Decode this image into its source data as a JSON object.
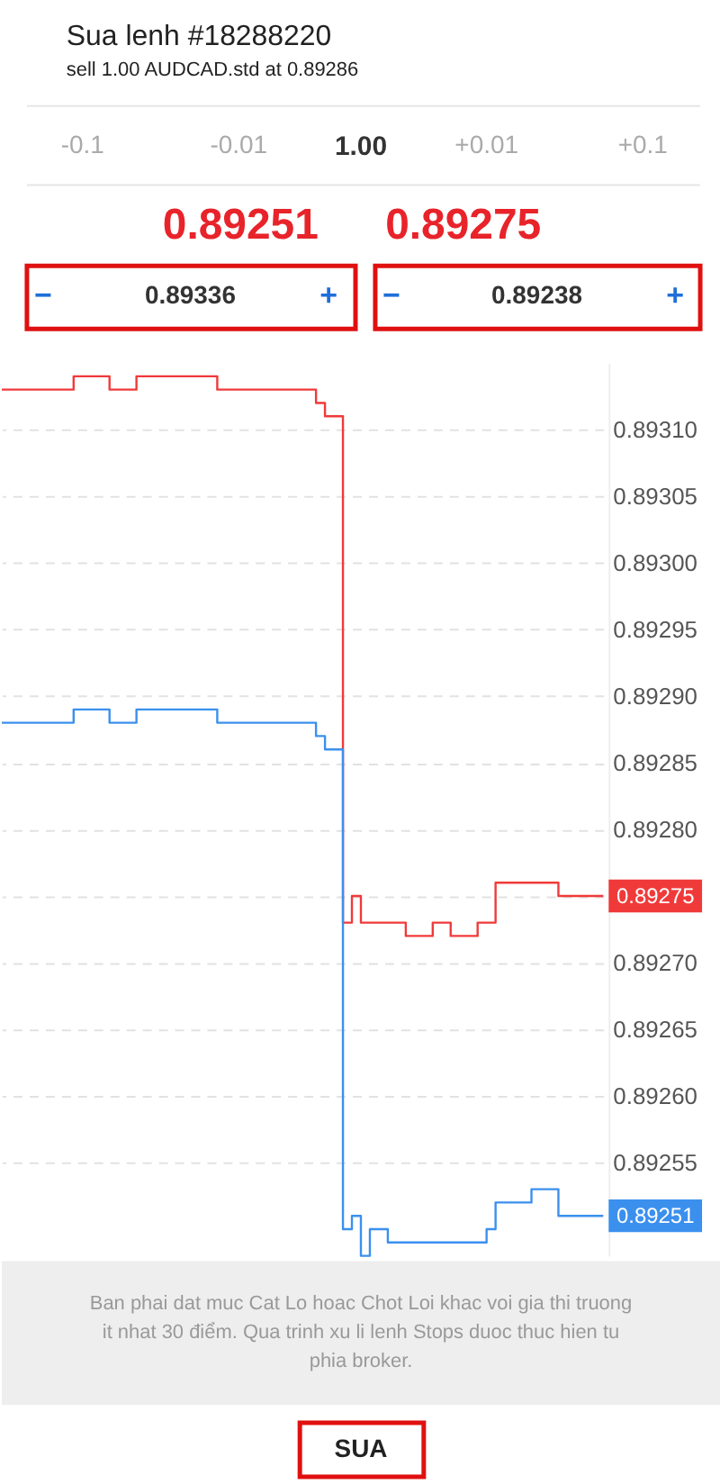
{
  "chart_data": {
    "type": "step",
    "title": "Sua lenh #18288220",
    "subtitle": "sell 1.00 AUDCAD.std at 0.89286",
    "categories": [
      null,
      null,
      null,
      null,
      null,
      null,
      null,
      null,
      null,
      null,
      null,
      null,
      null,
      null,
      null,
      null,
      null,
      null,
      null,
      null,
      null,
      null,
      null,
      null,
      null,
      null,
      null,
      null,
      null,
      null,
      null,
      null,
      null,
      null,
      null,
      null,
      null,
      null,
      null,
      null,
      null,
      null,
      null,
      null,
      null,
      null,
      null,
      null,
      null,
      null,
      null,
      null,
      null,
      null,
      null,
      null,
      null,
      null,
      null,
      null,
      null,
      null,
      null,
      null,
      null,
      null,
      null,
      null
    ],
    "series": [
      {
        "color": "#f03a3a",
        "values": [
          0.89313,
          0.89313,
          0.89313,
          0.89313,
          0.89313,
          0.89313,
          0.89313,
          0.89313,
          0.89314,
          0.89314,
          0.89314,
          0.89314,
          0.89313,
          0.89313,
          0.89313,
          0.89314,
          0.89314,
          0.89314,
          0.89314,
          0.89314,
          0.89314,
          0.89314,
          0.89314,
          0.89314,
          0.89313,
          0.89313,
          0.89313,
          0.89313,
          0.89313,
          0.89313,
          0.89313,
          0.89313,
          0.89313,
          0.89313,
          0.89313,
          0.89312,
          0.89311,
          0.89311,
          0.89273,
          0.89275,
          0.89273,
          0.89273,
          0.89273,
          0.89273,
          0.89273,
          0.89272,
          0.89272,
          0.89272,
          0.89273,
          0.89273,
          0.89272,
          0.89272,
          0.89272,
          0.89273,
          0.89273,
          0.89276,
          0.89276,
          0.89276,
          0.89276,
          0.89276,
          0.89276,
          0.89276,
          0.89275,
          0.89275,
          0.89275,
          0.89275,
          0.89275,
          0.89275
        ]
      },
      {
        "color": "#3b90ee",
        "values": [
          0.89288,
          0.89288,
          0.89288,
          0.89288,
          0.89288,
          0.89288,
          0.89288,
          0.89288,
          0.89289,
          0.89289,
          0.89289,
          0.89289,
          0.89288,
          0.89288,
          0.89288,
          0.89289,
          0.89289,
          0.89289,
          0.89289,
          0.89289,
          0.89289,
          0.89289,
          0.89289,
          0.89289,
          0.89288,
          0.89288,
          0.89288,
          0.89288,
          0.89288,
          0.89288,
          0.89288,
          0.89288,
          0.89288,
          0.89288,
          0.89288,
          0.89287,
          0.89286,
          0.89286,
          0.8925,
          0.89251,
          0.89248,
          0.8925,
          0.8925,
          0.89249,
          0.89249,
          0.89249,
          0.89249,
          0.89249,
          0.89249,
          0.89249,
          0.89249,
          0.89249,
          0.89249,
          0.89249,
          0.8925,
          0.89252,
          0.89252,
          0.89252,
          0.89252,
          0.89253,
          0.89253,
          0.89253,
          0.89251,
          0.89251,
          0.89251,
          0.89251,
          0.89251,
          0.89251
        ]
      }
    ],
    "ylim": [
      0.89248,
      0.89315
    ],
    "yticks": [
      {
        "value": 0.89255,
        "label": "0.89255"
      },
      {
        "value": 0.8926,
        "label": "0.89260"
      },
      {
        "value": 0.89265,
        "label": "0.89265"
      },
      {
        "value": 0.8927,
        "label": "0.89270"
      },
      {
        "value": 0.89275,
        "label": null
      },
      {
        "value": 0.8928,
        "label": "0.89280"
      },
      {
        "value": 0.89285,
        "label": "0.89285"
      },
      {
        "value": 0.8929,
        "label": "0.89290"
      },
      {
        "value": 0.89295,
        "label": "0.89295"
      },
      {
        "value": 0.893,
        "label": "0.89300"
      },
      {
        "value": 0.89305,
        "label": "0.89305"
      },
      {
        "value": 0.8931,
        "label": "0.89310"
      }
    ],
    "grid": "y",
    "legend": false,
    "tick_labels": "y",
    "annotations": [
      "-0.1",
      "-0.01",
      "1.00",
      "+0.01",
      "+0.1",
      "0.89251",
      "0.89275",
      "−",
      "0.89336",
      "+",
      "−",
      "0.89238",
      "+",
      "Ban phai dat muc Cat Lo hoac Chot Loi khac voi gia thi truong it nhat 30 điểm. Qua trinh xu li lenh Stops duoc thuc hien tu phia broker.",
      "SUA",
      "0.89275",
      "0.89251"
    ]
  }
}
